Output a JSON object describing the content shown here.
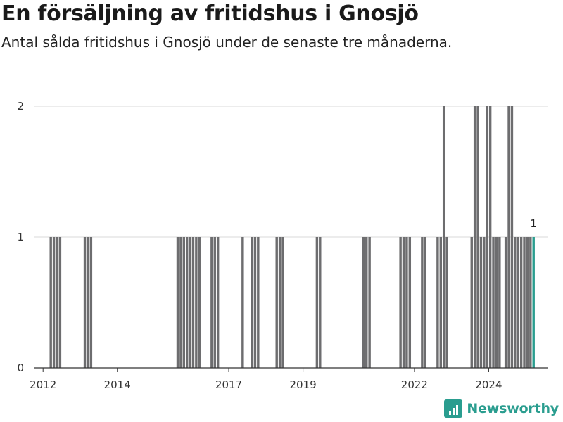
{
  "title": "En försäljning av fritidshus i Gnosjö",
  "subtitle": "Antal sålda fritidshus i Gnosjö under de senaste tre månaderna.",
  "brand": {
    "name": "Newsworthy",
    "icon": "bar-chart-logo-icon",
    "color": "#2a9d8f"
  },
  "chart_data": {
    "type": "bar",
    "title": "En försäljning av fritidshus i Gnosjö",
    "subtitle": "Antal sålda fritidshus i Gnosjö under de senaste tre månaderna.",
    "xlabel": "",
    "ylabel": "",
    "y_ticks": [
      0,
      1,
      2
    ],
    "ylim": [
      0,
      2
    ],
    "x_ticks": [
      "2012",
      "2014",
      "2017",
      "2019",
      "2022",
      "2024"
    ],
    "xlim": [
      "2011-10",
      "2025-08"
    ],
    "grid": true,
    "bar_color": "#6d6d6f",
    "highlight_color": "#2a9d8f",
    "last_value_label": "1",
    "series": [
      {
        "x": [
          "2012-03",
          "2012-04",
          "2012-05",
          "2012-06",
          "2013-02",
          "2013-03",
          "2013-04",
          "2015-08",
          "2015-09",
          "2015-10",
          "2015-11",
          "2015-12",
          "2016-01",
          "2016-02",
          "2016-03",
          "2016-07",
          "2016-08",
          "2016-09",
          "2017-05",
          "2017-08",
          "2017-09",
          "2017-10",
          "2018-04",
          "2018-05",
          "2018-06",
          "2019-05",
          "2019-06",
          "2020-08",
          "2020-09",
          "2020-10",
          "2021-08",
          "2021-09",
          "2021-10",
          "2021-11",
          "2022-03",
          "2022-04",
          "2022-08",
          "2022-09",
          "2022-10",
          "2022-11",
          "2023-07",
          "2023-08",
          "2023-09",
          "2023-10",
          "2023-11",
          "2023-12",
          "2024-01",
          "2024-02",
          "2024-03",
          "2024-04",
          "2024-06",
          "2024-07",
          "2024-08",
          "2024-09",
          "2024-10",
          "2024-11",
          "2024-12",
          "2025-01",
          "2025-02",
          "2025-03"
        ],
        "values": [
          1,
          1,
          1,
          1,
          1,
          1,
          1,
          1,
          1,
          1,
          1,
          1,
          1,
          1,
          1,
          1,
          1,
          1,
          1,
          1,
          1,
          1,
          1,
          1,
          1,
          1,
          1,
          1,
          1,
          1,
          1,
          1,
          1,
          1,
          1,
          1,
          1,
          1,
          2,
          1,
          1,
          2,
          2,
          1,
          1,
          2,
          2,
          1,
          1,
          1,
          1,
          2,
          2,
          1,
          1,
          1,
          1,
          1,
          1,
          1
        ]
      }
    ]
  }
}
